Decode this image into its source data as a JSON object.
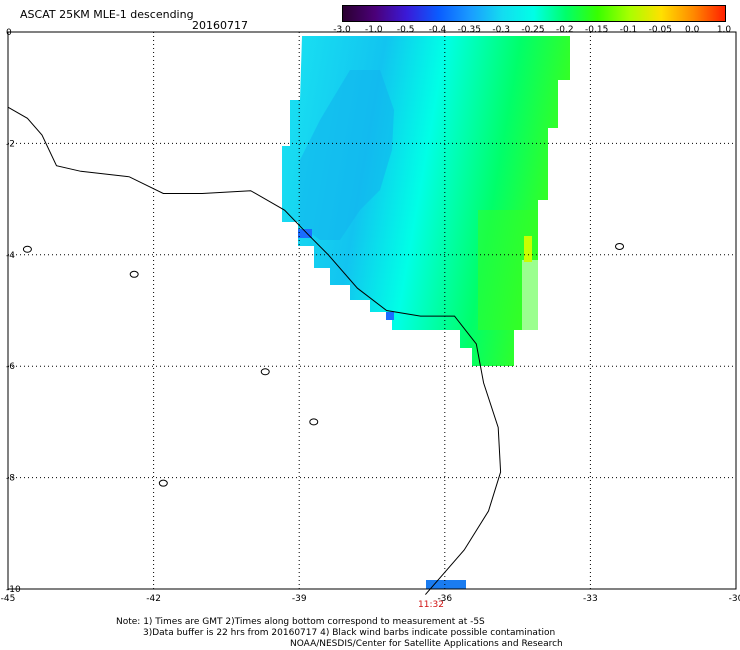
{
  "header": {
    "title": "ASCAT 25KM MLE-1 descending",
    "date": "20160717"
  },
  "colorbar": {
    "labels": [
      "-3.0",
      "-1.0",
      "-0.5",
      "-0.4",
      "-0.35",
      "-0.3",
      "-0.25",
      "-0.2",
      "-0.15",
      "-0.1",
      "-0.05",
      "0.0",
      "1.0"
    ],
    "colors": [
      "#2a0030",
      "#4b0078",
      "#3a1ad8",
      "#0a5cff",
      "#1a9cff",
      "#14dcf0",
      "#00ffe6",
      "#00ff6a",
      "#38ff00",
      "#a8ff00",
      "#ffe000",
      "#ff8a00",
      "#ff2000"
    ]
  },
  "axes": {
    "x_ticks": [
      "-45",
      "-42",
      "-39",
      "-36",
      "-33",
      "-30"
    ],
    "y_ticks": [
      "0",
      "-2",
      "-4",
      "-6",
      "-8",
      "-10"
    ]
  },
  "map": {
    "lon_range": [
      -45,
      -30
    ],
    "lat_range": [
      -10,
      0
    ],
    "overpass_time": "11:32",
    "coast_outline": [
      [
        -45,
        -1.35
      ],
      [
        -44.6,
        -1.55
      ],
      [
        -44.3,
        -1.85
      ],
      [
        -44.0,
        -2.4
      ],
      [
        -43.5,
        -2.5
      ],
      [
        -42.5,
        -2.6
      ],
      [
        -41.8,
        -2.9
      ],
      [
        -41.0,
        -2.9
      ],
      [
        -40.0,
        -2.85
      ],
      [
        -39.3,
        -3.2
      ],
      [
        -38.8,
        -3.65
      ],
      [
        -38.4,
        -4.0
      ],
      [
        -37.8,
        -4.6
      ],
      [
        -37.2,
        -5.0
      ],
      [
        -36.5,
        -5.1
      ],
      [
        -35.8,
        -5.1
      ],
      [
        -35.35,
        -5.6
      ],
      [
        -35.2,
        -6.3
      ],
      [
        -34.9,
        -7.1
      ],
      [
        -34.85,
        -7.9
      ],
      [
        -35.1,
        -8.6
      ],
      [
        -35.6,
        -9.3
      ],
      [
        -36.1,
        -9.8
      ],
      [
        -36.4,
        -10.1
      ]
    ],
    "islands": [
      [
        -42.4,
        -4.35
      ],
      [
        -39.7,
        -6.1
      ],
      [
        -38.7,
        -7.0
      ],
      [
        -41.8,
        -8.1
      ],
      [
        -32.4,
        -3.85
      ],
      [
        -44.6,
        -3.9
      ]
    ]
  }
}
